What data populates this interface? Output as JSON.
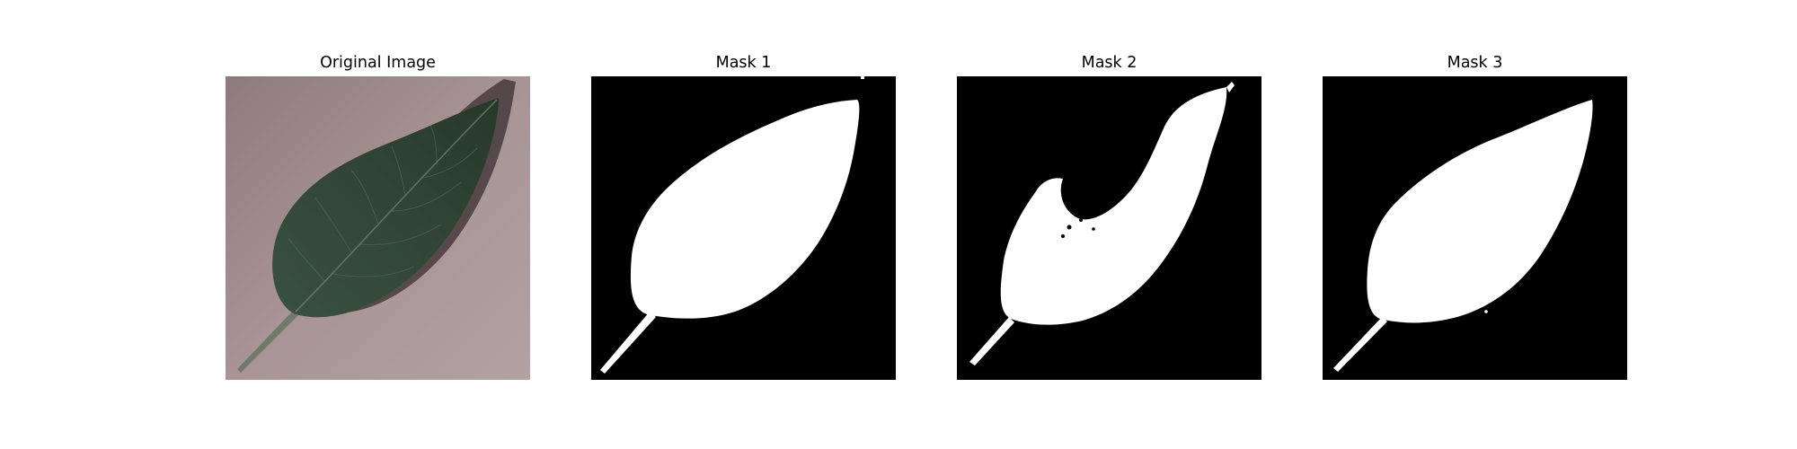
{
  "panels": [
    {
      "title": "Original Image",
      "kind": "photo"
    },
    {
      "title": "Mask 1",
      "kind": "mask"
    },
    {
      "title": "Mask 2",
      "kind": "mask"
    },
    {
      "title": "Mask 3",
      "kind": "mask"
    }
  ],
  "colors": {
    "mask_background": "#000000",
    "mask_foreground": "#ffffff",
    "leaf": "#34483a",
    "paper": "#a38f8f"
  }
}
